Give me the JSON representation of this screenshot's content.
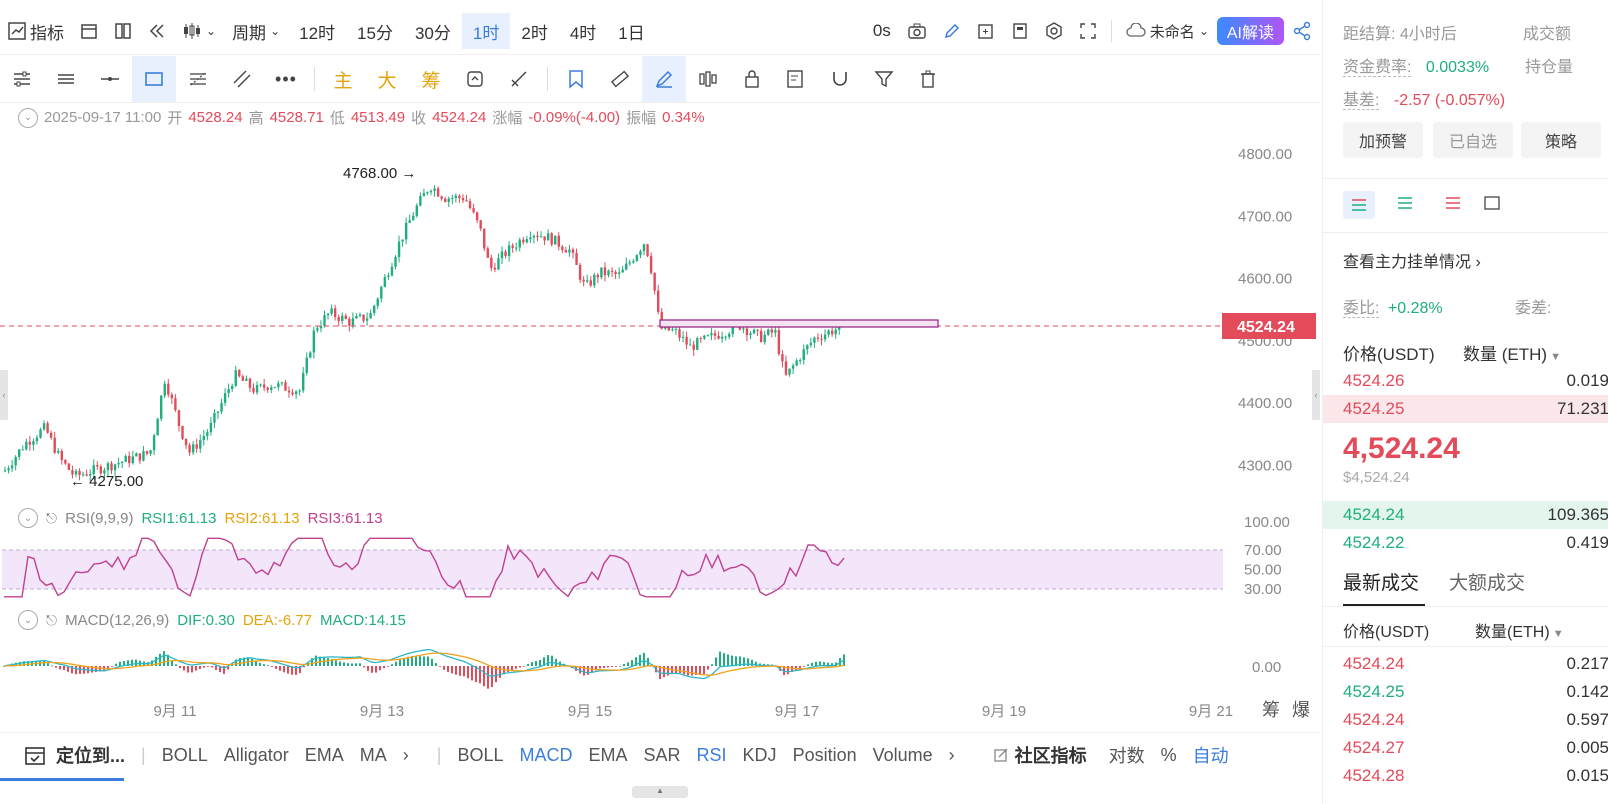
{
  "toolbar": {
    "indicators_label": "指标",
    "period_label": "周期",
    "periods": [
      "12时",
      "15分",
      "30分",
      "1时",
      "2时",
      "4时",
      "1日"
    ],
    "active_period": "1时",
    "countdown": "0s",
    "layout_name": "未命名",
    "ai_label": "AI解读",
    "main_label": "主",
    "big_label": "大",
    "chip_label": "筹"
  },
  "ohlc": {
    "date": "2025-09-17 11:00",
    "open_label": "开",
    "open": "4528.24",
    "high_label": "高",
    "high": "4528.71",
    "low_label": "低",
    "low": "4513.49",
    "close_label": "收",
    "close": "4524.24",
    "change_label": "涨幅",
    "change": "-0.09%(-4.00)",
    "amp_label": "振幅",
    "amplitude": "0.34%"
  },
  "price_axis": [
    "4800.00",
    "4700.00",
    "4600.00",
    "4400.00",
    "4300.00"
  ],
  "price_axis_partial": "4500.00",
  "current_price_tag": "4524.24",
  "annotations": {
    "high": "4768.00",
    "low": "4275.00"
  },
  "rsi": {
    "title": "RSI(9,9,9)",
    "rsi1": "RSI1:61.13",
    "rsi2": "RSI2:61.13",
    "rsi3": "RSI3:61.13",
    "levels": [
      "100.00",
      "70.00",
      "50.00",
      "30.00"
    ]
  },
  "macd": {
    "title": "MACD(12,26,9)",
    "dif": "DIF:0.30",
    "dea": "DEA:-6.77",
    "macd": "MACD:14.15",
    "zero": "0.00"
  },
  "date_axis": [
    "9月 11",
    "9月 13",
    "9月 15",
    "9月 17",
    "9月 19",
    "9月 21"
  ],
  "corner_labels": [
    "筹",
    "爆"
  ],
  "bottom_bar": {
    "locate": "定位到...",
    "left_indicators": [
      "BOLL",
      "Alligator",
      "EMA",
      "MA"
    ],
    "right_indicators": [
      "BOLL",
      "MACD",
      "EMA",
      "SAR",
      "RSI",
      "KDJ",
      "Position",
      "Volume"
    ],
    "active_indicators": [
      "MACD",
      "RSI"
    ],
    "community": "社区指标",
    "log": "对数",
    "percent": "%",
    "auto": "自动"
  },
  "right_panel": {
    "settle_label": "距结算:",
    "settle_value": "4小时后",
    "volume_label": "成交额",
    "funding_label": "资金费率:",
    "funding_value": "0.0033%",
    "oi_label": "持仓量",
    "basis_label": "基差:",
    "basis_value": "-2.57 (-0.057%)",
    "btn_alert": "加预警",
    "btn_fav": "已自选",
    "btn_strategy": "策略",
    "orders_link": "查看主力挂单情况",
    "ratio_label": "委比:",
    "ratio_value": "+0.28%",
    "diff_label": "委差:",
    "price_header": "价格(USDT)",
    "qty_header": "数量 (ETH)",
    "asks": [
      {
        "price": "4524.26",
        "qty": "0.019"
      },
      {
        "price": "4524.25",
        "qty": "71.231"
      }
    ],
    "last_price": "4,524.24",
    "last_price_usd": "$4,524.24",
    "bids": [
      {
        "price": "4524.24",
        "qty": "109.365"
      },
      {
        "price": "4524.22",
        "qty": "0.419"
      }
    ],
    "tab_latest": "最新成交",
    "tab_large": "大额成交",
    "trades_price_header": "价格(USDT)",
    "trades_qty_header": "数量(ETH)",
    "trades": [
      {
        "price": "4524.24",
        "qty": "0.217",
        "side": "sell"
      },
      {
        "price": "4524.25",
        "qty": "0.142",
        "side": "buy"
      },
      {
        "price": "4524.24",
        "qty": "0.597",
        "side": "sell"
      },
      {
        "price": "4524.27",
        "qty": "0.005",
        "side": "sell"
      },
      {
        "price": "4524.28",
        "qty": "0.015",
        "side": "sell"
      }
    ]
  },
  "colors": {
    "up": "#1fae7d",
    "down": "#e34a5a",
    "accent": "#3b7ddd",
    "rsi_band": "#f3e6fb"
  },
  "chart_data": {
    "type": "candlestick",
    "symbol_unit": "USDT",
    "ylim": [
      4250,
      4830
    ],
    "x_range": [
      "9月 11",
      "9月 21"
    ],
    "high_point": 4768.0,
    "low_point": 4275.0,
    "current": 4524.24,
    "close_path_approx": [
      {
        "x": "9月 10",
        "y": 4290
      },
      {
        "x": "9月 11",
        "y": 4300
      },
      {
        "x": "9月 12",
        "y": 4420
      },
      {
        "x": "9月 13",
        "y": 4560
      },
      {
        "x": "9月 13.5",
        "y": 4740
      },
      {
        "x": "9月 14",
        "y": 4700
      },
      {
        "x": "9月 14.5",
        "y": 4660
      },
      {
        "x": "9月 15",
        "y": 4620
      },
      {
        "x": "9月 15.8",
        "y": 4650
      },
      {
        "x": "9月 16",
        "y": 4520
      },
      {
        "x": "9月 16.5",
        "y": 4495
      },
      {
        "x": "9月 17",
        "y": 4430
      },
      {
        "x": "9月 17.5",
        "y": 4524
      }
    ]
  }
}
